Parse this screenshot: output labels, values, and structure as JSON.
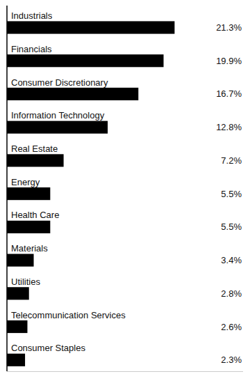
{
  "chart_data": {
    "type": "bar",
    "orientation": "horizontal",
    "categories": [
      "Industrials",
      "Financials",
      "Consumer Discretionary",
      "Information Technology",
      "Real Estate",
      "Energy",
      "Health Care",
      "Materials",
      "Utilities",
      "Telecommunication Services",
      "Consumer Staples"
    ],
    "values": [
      21.3,
      19.9,
      16.7,
      12.8,
      7.2,
      5.5,
      5.5,
      3.4,
      2.8,
      2.6,
      2.3
    ],
    "value_labels": [
      "21.3%",
      "19.9%",
      "16.7%",
      "12.8%",
      "7.2%",
      "5.5%",
      "5.5%",
      "3.4%",
      "2.8%",
      "2.6%",
      "2.3%"
    ],
    "data_labels": true,
    "color": "#000000",
    "xlim": [
      0,
      30
    ],
    "tick_labels": false
  }
}
